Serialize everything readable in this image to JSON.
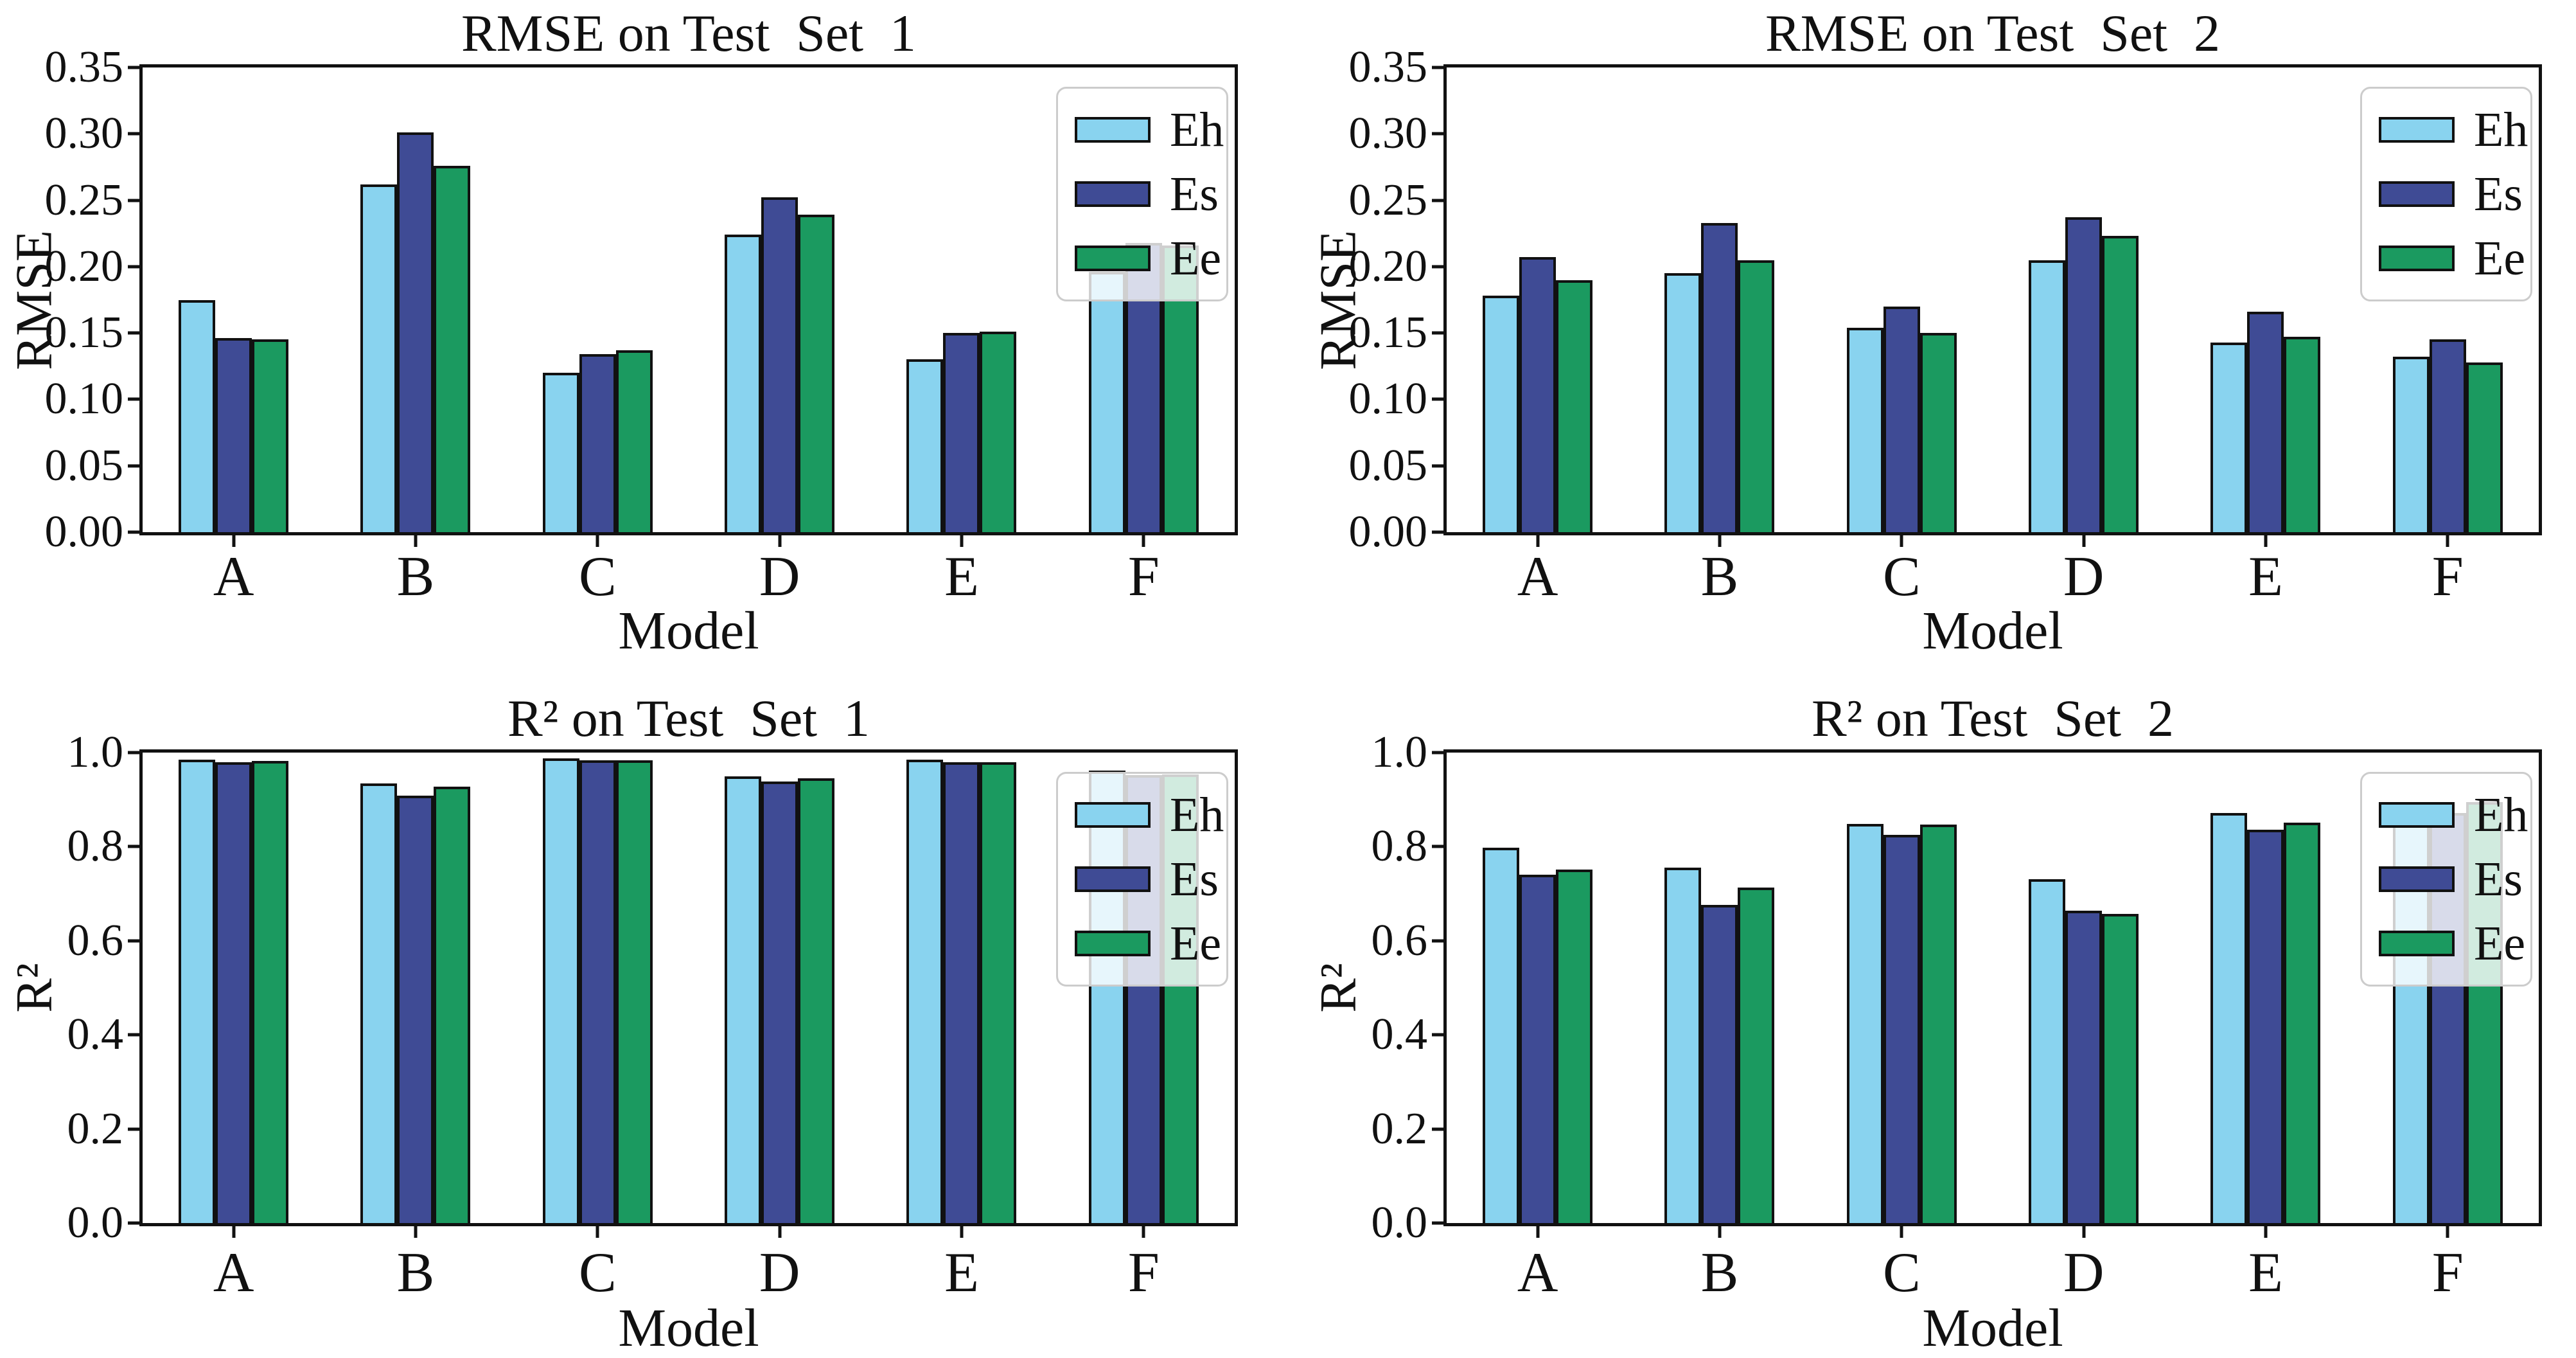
{
  "figure": {
    "background": "#ffffff"
  },
  "colors": {
    "Eh": "#89D3EF",
    "Es": "#3F4B95",
    "Ee": "#1B9A60",
    "edge": "#111111",
    "legend_border": "#cccccc"
  },
  "legend": {
    "items": [
      "Eh",
      "Es",
      "Ee"
    ],
    "position": "upper right"
  },
  "chart_data": [
    {
      "id": "rmse-test-set-1",
      "type": "bar",
      "title": "RMSE on Test  Set  1",
      "xlabel": "Model",
      "ylabel": "RMSE",
      "categories": [
        "A",
        "B",
        "C",
        "D",
        "E",
        "F"
      ],
      "ylim": [
        0,
        0.35
      ],
      "yticks": [
        "0.35",
        "0.30",
        "0.25",
        "0.20",
        "0.15",
        "0.10",
        "0.05",
        "0.00"
      ],
      "grid": false,
      "legend_position": "upper right",
      "series": [
        {
          "name": "Eh",
          "values": [
            0.175,
            0.262,
            0.12,
            0.224,
            0.13,
            0.196
          ]
        },
        {
          "name": "Es",
          "values": [
            0.146,
            0.301,
            0.134,
            0.252,
            0.15,
            0.218
          ]
        },
        {
          "name": "Ee",
          "values": [
            0.145,
            0.276,
            0.137,
            0.239,
            0.151,
            0.216
          ]
        }
      ]
    },
    {
      "id": "rmse-test-set-2",
      "type": "bar",
      "title": "RMSE on Test  Set  2",
      "xlabel": "Model",
      "ylabel": "RMSE",
      "categories": [
        "A",
        "B",
        "C",
        "D",
        "E",
        "F"
      ],
      "ylim": [
        0,
        0.35
      ],
      "yticks": [
        "0.35",
        "0.30",
        "0.25",
        "0.20",
        "0.15",
        "0.10",
        "0.05",
        "0.00"
      ],
      "grid": false,
      "legend_position": "upper right",
      "series": [
        {
          "name": "Eh",
          "values": [
            0.178,
            0.195,
            0.154,
            0.205,
            0.143,
            0.132
          ]
        },
        {
          "name": "Es",
          "values": [
            0.207,
            0.233,
            0.17,
            0.237,
            0.166,
            0.145
          ]
        },
        {
          "name": "Ee",
          "values": [
            0.19,
            0.205,
            0.15,
            0.223,
            0.147,
            0.128
          ]
        }
      ]
    },
    {
      "id": "r2-test-set-1",
      "type": "bar",
      "title": "R² on Test  Set  1",
      "xlabel": "Model",
      "ylabel": "R²",
      "categories": [
        "A",
        "B",
        "C",
        "D",
        "E",
        "F"
      ],
      "ylim": [
        0,
        1.0
      ],
      "yticks": [
        "1.0",
        "0.8",
        "0.6",
        "0.4",
        "0.2",
        "0.0"
      ],
      "grid": false,
      "legend_position": "upper right",
      "series": [
        {
          "name": "Eh",
          "values": [
            0.985,
            0.934,
            0.988,
            0.95,
            0.985,
            0.962
          ]
        },
        {
          "name": "Es",
          "values": [
            0.979,
            0.909,
            0.983,
            0.938,
            0.979,
            0.952
          ]
        },
        {
          "name": "Ee",
          "values": [
            0.982,
            0.928,
            0.983,
            0.946,
            0.98,
            0.954
          ]
        }
      ]
    },
    {
      "id": "r2-test-set-2",
      "type": "bar",
      "title": "R² on Test  Set  2",
      "xlabel": "Model",
      "ylabel": "R²",
      "categories": [
        "A",
        "B",
        "C",
        "D",
        "E",
        "F"
      ],
      "ylim": [
        0,
        1.0
      ],
      "yticks": [
        "1.0",
        "0.8",
        "0.6",
        "0.4",
        "0.2",
        "0.0"
      ],
      "grid": false,
      "legend_position": "upper right",
      "series": [
        {
          "name": "Eh",
          "values": [
            0.798,
            0.755,
            0.849,
            0.731,
            0.871,
            0.893
          ]
        },
        {
          "name": "Es",
          "values": [
            0.74,
            0.676,
            0.825,
            0.664,
            0.836,
            0.872
          ]
        },
        {
          "name": "Ee",
          "values": [
            0.751,
            0.713,
            0.847,
            0.657,
            0.851,
            0.895
          ]
        }
      ]
    }
  ]
}
